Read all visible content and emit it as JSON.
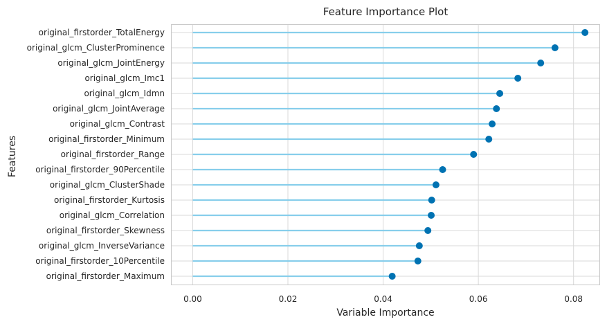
{
  "chart_data": {
    "type": "lollipop",
    "title": "Feature Importance Plot",
    "xlabel": "Variable Importance",
    "ylabel": "Features",
    "xlim": [
      -0.0045,
      0.0855
    ],
    "xticks": [
      0.0,
      0.02,
      0.04,
      0.06,
      0.08
    ],
    "xtick_labels": [
      "0.00",
      "0.02",
      "0.04",
      "0.06",
      "0.08"
    ],
    "grid": true,
    "colors": {
      "stem": "#87ceeb",
      "marker": "#0072b2",
      "grid": "#d9d9d9",
      "frame": "#c8c8c8"
    },
    "categories": [
      "original_firstorder_TotalEnergy",
      "original_glcm_ClusterProminence",
      "original_glcm_JointEnergy",
      "original_glcm_Imc1",
      "original_glcm_Idmn",
      "original_glcm_JointAverage",
      "original_glcm_Contrast",
      "original_firstorder_Minimum",
      "original_firstorder_Range",
      "original_firstorder_90Percentile",
      "original_glcm_ClusterShade",
      "original_firstorder_Kurtosis",
      "original_glcm_Correlation",
      "original_firstorder_Skewness",
      "original_glcm_InverseVariance",
      "original_firstorder_10Percentile",
      "original_firstorder_Maximum"
    ],
    "values": [
      0.0824,
      0.0761,
      0.0731,
      0.0683,
      0.0645,
      0.0638,
      0.0629,
      0.0622,
      0.059,
      0.0525,
      0.0511,
      0.0502,
      0.0501,
      0.0494,
      0.0476,
      0.0473,
      0.0419
    ]
  }
}
